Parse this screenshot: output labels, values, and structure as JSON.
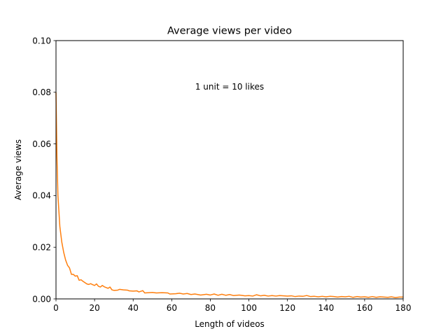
{
  "chart_data": {
    "type": "line",
    "title": "Average views per video",
    "xlabel": "Length of videos",
    "ylabel": "Average views",
    "xlim": [
      0,
      180
    ],
    "ylim": [
      0,
      0.1
    ],
    "xticks": [
      0,
      20,
      40,
      60,
      80,
      100,
      120,
      140,
      160,
      180
    ],
    "yticks": [
      0.0,
      0.02,
      0.04,
      0.06,
      0.08,
      0.1
    ],
    "xtick_labels": [
      "0",
      "20",
      "40",
      "60",
      "80",
      "100",
      "120",
      "140",
      "160",
      "180"
    ],
    "ytick_labels": [
      "0.00",
      "0.02",
      "0.04",
      "0.06",
      "0.08",
      "0.10"
    ],
    "grid": false,
    "legend": "none",
    "annotation": {
      "text": "1 unit = 10 likes",
      "x": 90,
      "y": 0.081
    },
    "series": [
      {
        "color": "#ff7f0e",
        "points": [
          [
            0,
            0.08
          ],
          [
            0.5,
            0.055
          ],
          [
            1,
            0.04
          ],
          [
            2,
            0.028
          ],
          [
            3,
            0.022
          ],
          [
            4,
            0.018
          ],
          [
            5,
            0.015
          ],
          [
            6,
            0.013
          ],
          [
            7,
            0.012
          ],
          [
            8,
            0.0095
          ],
          [
            9,
            0.0095
          ],
          [
            10,
            0.0088
          ],
          [
            11,
            0.009
          ],
          [
            12,
            0.0072
          ],
          [
            13,
            0.0074
          ],
          [
            14,
            0.0068
          ],
          [
            15,
            0.0063
          ],
          [
            16,
            0.0058
          ],
          [
            17,
            0.0056
          ],
          [
            18,
            0.0059
          ],
          [
            19,
            0.0055
          ],
          [
            20,
            0.0052
          ],
          [
            21,
            0.0058
          ],
          [
            22,
            0.0049
          ],
          [
            23,
            0.0046
          ],
          [
            24,
            0.0052
          ],
          [
            25,
            0.0047
          ],
          [
            26,
            0.0044
          ],
          [
            27,
            0.0041
          ],
          [
            28,
            0.0046
          ],
          [
            29,
            0.0035
          ],
          [
            30,
            0.0033
          ],
          [
            32,
            0.0034
          ],
          [
            33,
            0.0037
          ],
          [
            35,
            0.0035
          ],
          [
            37,
            0.0034
          ],
          [
            38,
            0.0031
          ],
          [
            40,
            0.003
          ],
          [
            42,
            0.0031
          ],
          [
            43,
            0.0027
          ],
          [
            45,
            0.0032
          ],
          [
            46,
            0.0023
          ],
          [
            48,
            0.0024
          ],
          [
            50,
            0.0025
          ],
          [
            52,
            0.0023
          ],
          [
            55,
            0.0024
          ],
          [
            58,
            0.0023
          ],
          [
            59,
            0.0019
          ],
          [
            62,
            0.002
          ],
          [
            64,
            0.0022
          ],
          [
            66,
            0.0019
          ],
          [
            68,
            0.0021
          ],
          [
            70,
            0.0017
          ],
          [
            72,
            0.0019
          ],
          [
            75,
            0.0015
          ],
          [
            78,
            0.0018
          ],
          [
            80,
            0.0015
          ],
          [
            82,
            0.0019
          ],
          [
            84,
            0.0014
          ],
          [
            86,
            0.0018
          ],
          [
            88,
            0.0014
          ],
          [
            90,
            0.0017
          ],
          [
            92,
            0.0013
          ],
          [
            95,
            0.0015
          ],
          [
            98,
            0.0012
          ],
          [
            100,
            0.0013
          ],
          [
            102,
            0.0011
          ],
          [
            104,
            0.0016
          ],
          [
            106,
            0.0012
          ],
          [
            108,
            0.0014
          ],
          [
            110,
            0.0011
          ],
          [
            112,
            0.0013
          ],
          [
            114,
            0.0011
          ],
          [
            116,
            0.0013
          ],
          [
            118,
            0.0012
          ],
          [
            120,
            0.0011
          ],
          [
            122,
            0.0012
          ],
          [
            124,
            0.0009
          ],
          [
            126,
            0.0011
          ],
          [
            128,
            0.001
          ],
          [
            130,
            0.0013
          ],
          [
            132,
            0.0009
          ],
          [
            134,
            0.001
          ],
          [
            136,
            0.0008
          ],
          [
            138,
            0.001
          ],
          [
            140,
            0.0008
          ],
          [
            142,
            0.001
          ],
          [
            144,
            0.0009
          ],
          [
            146,
            0.0007
          ],
          [
            148,
            0.0009
          ],
          [
            150,
            0.0008
          ],
          [
            152,
            0.001
          ],
          [
            154,
            0.0006
          ],
          [
            156,
            0.0009
          ],
          [
            158,
            0.0007
          ],
          [
            160,
            0.0008
          ],
          [
            162,
            0.0006
          ],
          [
            164,
            0.0009
          ],
          [
            166,
            0.0006
          ],
          [
            168,
            0.0008
          ],
          [
            170,
            0.0007
          ],
          [
            172,
            0.0006
          ],
          [
            174,
            0.0008
          ],
          [
            176,
            0.0005
          ],
          [
            178,
            0.0007
          ],
          [
            180,
            0.0007
          ]
        ]
      }
    ]
  }
}
